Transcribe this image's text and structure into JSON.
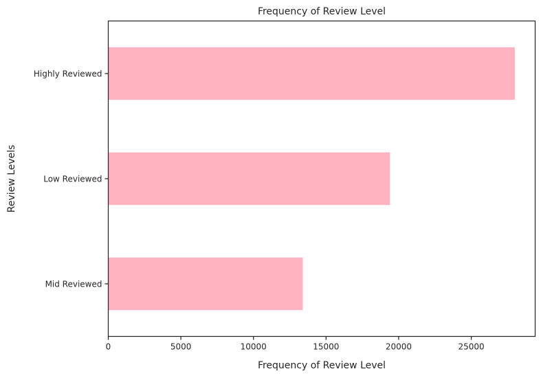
{
  "chart_data": {
    "type": "bar",
    "orientation": "horizontal",
    "title": "Frequency of Review Level",
    "xlabel": "Frequency of Review Level",
    "ylabel": "Review Levels",
    "categories": [
      "Highly Reviewed",
      "Low Reviewed",
      "Mid Reviewed"
    ],
    "values": [
      28000,
      19400,
      13400
    ],
    "xlim": [
      0,
      29400
    ],
    "xticks": [
      "0",
      "5000",
      "10000",
      "15000",
      "20000",
      "25000"
    ],
    "bar_color": "#ffb3c1",
    "grid": false
  }
}
